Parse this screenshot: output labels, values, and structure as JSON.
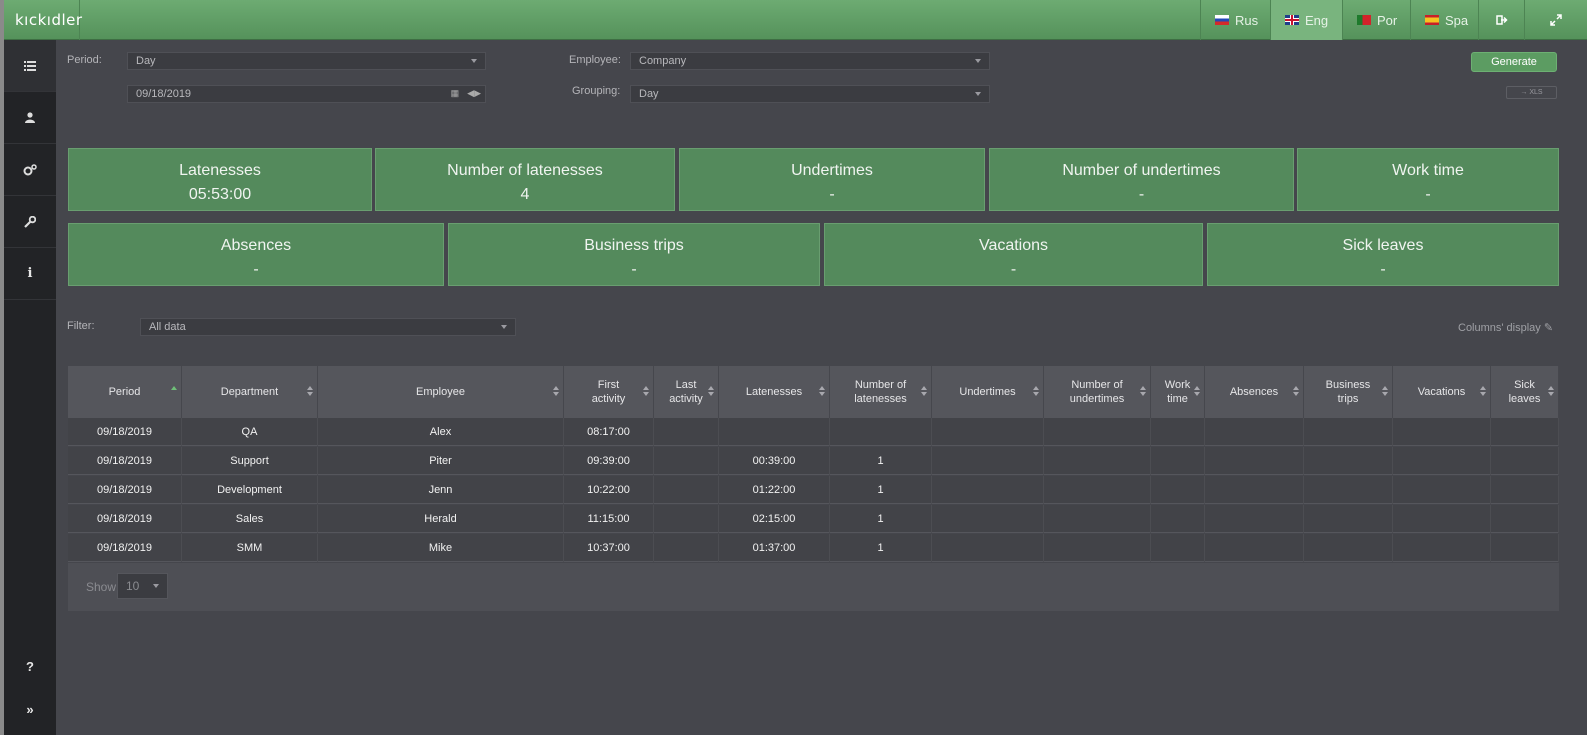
{
  "app": {
    "logo": "KICKIDLER"
  },
  "topbar": {
    "languages": [
      {
        "label": "Rus",
        "flag": "russia-flag-icon"
      },
      {
        "label": "Eng",
        "flag": "uk-flag-icon"
      },
      {
        "label": "Por",
        "flag": "portugal-flag-icon"
      },
      {
        "label": "Spa",
        "flag": "spain-flag-icon"
      }
    ],
    "active_language": "Eng",
    "icons": [
      "logout-icon",
      "fullscreen-icon"
    ]
  },
  "sidebar": {
    "items": [
      "list-icon",
      "user-icon",
      "gears-icon",
      "wrench-icon",
      "info-icon",
      "help-icon",
      "expand-icon"
    ],
    "active": "list-icon"
  },
  "form": {
    "period_label": "Period:",
    "period_value": "Day",
    "date_value": "09/18/2019",
    "employee_label": "Employee:",
    "employee_value": "Company",
    "grouping_label": "Grouping:",
    "grouping_value": "Day",
    "generate_label": "Generate",
    "xls_label": "→ XLS"
  },
  "summary_row1": [
    {
      "title": "Latenesses",
      "value": "05:53:00"
    },
    {
      "title": "Number of latenesses",
      "value": "4"
    },
    {
      "title": "Undertimes",
      "value": "-"
    },
    {
      "title": "Number of undertimes",
      "value": "-"
    },
    {
      "title": "Work time",
      "value": "-"
    }
  ],
  "summary_row2": [
    {
      "title": "Absences",
      "value": "-"
    },
    {
      "title": "Business trips",
      "value": "-"
    },
    {
      "title": "Vacations",
      "value": "-"
    },
    {
      "title": "Sick leaves",
      "value": "-"
    }
  ],
  "filter": {
    "label": "Filter:",
    "value": "All data",
    "columns_display": "Columns' display"
  },
  "table": {
    "columns": [
      "Period",
      "Department",
      "Employee",
      "First activity",
      "Last activity",
      "Latenesses",
      "Number of latenesses",
      "Undertimes",
      "Number of undertimes",
      "Work time",
      "Absences",
      "Business trips",
      "Vacations",
      "Sick leaves"
    ],
    "rows": [
      [
        "09/18/2019",
        "QA",
        "Alex",
        "08:17:00",
        "",
        "",
        "",
        "",
        "",
        "",
        "",
        "",
        "",
        ""
      ],
      [
        "09/18/2019",
        "Support",
        "Piter",
        "09:39:00",
        "",
        "00:39:00",
        "1",
        "",
        "",
        "",
        "",
        "",
        "",
        ""
      ],
      [
        "09/18/2019",
        "Development",
        "Jenn",
        "10:22:00",
        "",
        "01:22:00",
        "1",
        "",
        "",
        "",
        "",
        "",
        "",
        ""
      ],
      [
        "09/18/2019",
        "Sales",
        "Herald",
        "11:15:00",
        "",
        "02:15:00",
        "1",
        "",
        "",
        "",
        "",
        "",
        "",
        ""
      ],
      [
        "09/18/2019",
        "SMM",
        "Mike",
        "10:37:00",
        "",
        "01:37:00",
        "1",
        "",
        "",
        "",
        "",
        "",
        "",
        ""
      ]
    ],
    "sorted_column": "Period"
  },
  "footer": {
    "show_label": "Show",
    "page_size": "10"
  },
  "colors": {
    "topbar": "#5f9e65",
    "card": "#548a5c",
    "background": "#45464c",
    "sidebar": "#222326"
  }
}
